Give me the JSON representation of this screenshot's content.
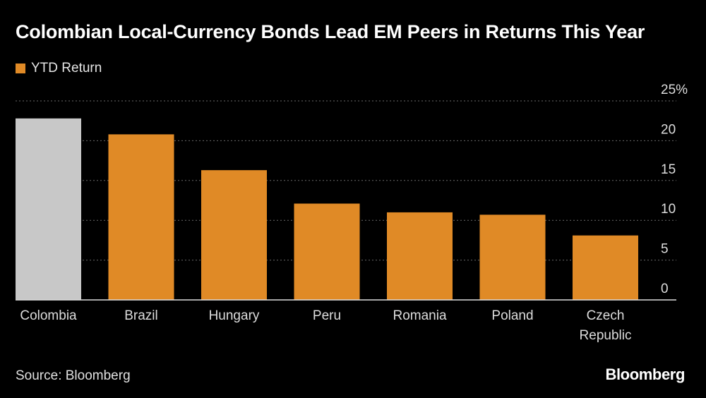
{
  "title": "Colombian Local-Currency Bonds Lead EM Peers in Returns This Year",
  "legend_label": "YTD Return",
  "source": "Source: Bloomberg",
  "brand": "Bloomberg",
  "colors": {
    "background": "#000000",
    "bar_primary": "#e08a26",
    "bar_highlight": "#c8c8c8",
    "grid": "#6a6a6a",
    "axis": "#dddddd",
    "text": "#ffffff",
    "muted_text": "#dddddd"
  },
  "chart_data": {
    "type": "bar",
    "categories": [
      "Colombia",
      "Brazil",
      "Hungary",
      "Peru",
      "Romania",
      "Poland",
      "Czech Republic"
    ],
    "category_labels": [
      [
        "Colombia"
      ],
      [
        "Brazil"
      ],
      [
        "Hungary"
      ],
      [
        "Peru"
      ],
      [
        "Romania"
      ],
      [
        "Poland"
      ],
      [
        "Czech",
        "Republic"
      ]
    ],
    "series": [
      {
        "name": "YTD Return",
        "values": [
          22.8,
          20.8,
          16.3,
          12.1,
          11.0,
          10.7,
          8.1
        ]
      }
    ],
    "highlight_index": 0,
    "ylim": [
      0,
      25
    ],
    "yticks": [
      0,
      5,
      10,
      15,
      20,
      25
    ],
    "ytick_labels": [
      "0",
      "5",
      "10",
      "15",
      "20",
      "25%"
    ],
    "grid": true,
    "y_axis_position": "right",
    "legend_position": "top-left"
  }
}
